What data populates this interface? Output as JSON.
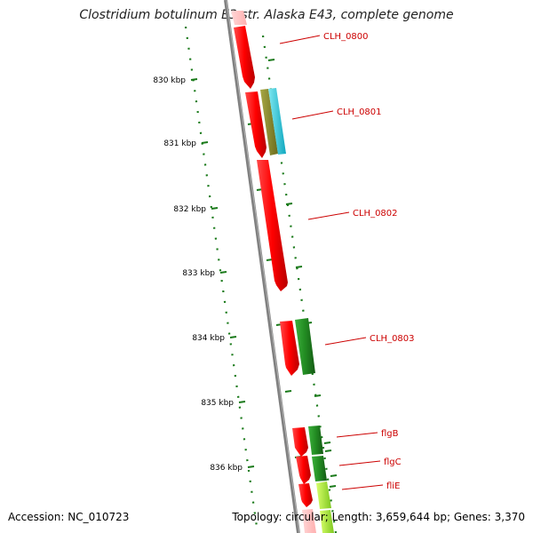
{
  "title": "Clostridium botulinum E3 str. Alaska E43, complete genome",
  "footer": {
    "accession": "Accession: NC_010723",
    "summary": "Topology: circular; Length: 3,659,644 bp; Genes: 3,370"
  },
  "ticks": [
    "830 kbp",
    "831 kbp",
    "832 kbp",
    "833 kbp",
    "834 kbp",
    "835 kbp",
    "836 kbp"
  ],
  "genes": [
    {
      "label": "CLH_0800",
      "color": "#ff0000"
    },
    {
      "label": "CLH_0801",
      "color": "#ff0000"
    },
    {
      "label": "CLH_0802",
      "color": "#ff0000"
    },
    {
      "label": "CLH_0803",
      "color": "#ff0000"
    },
    {
      "label": "flgB",
      "color": "#ff0000"
    },
    {
      "label": "flgC",
      "color": "#ff0000"
    },
    {
      "label": "fliE",
      "color": "#ff0000"
    }
  ],
  "colors": {
    "backbone": "#808080",
    "tick": "#1a7a1a",
    "gene_label": "#cc0000",
    "cds": "#ff0000",
    "feature_olive": "#8a8a2a",
    "feature_cyan": "#20c8d8",
    "feature_green": "#228b22",
    "feature_lime": "#9acd32"
  }
}
